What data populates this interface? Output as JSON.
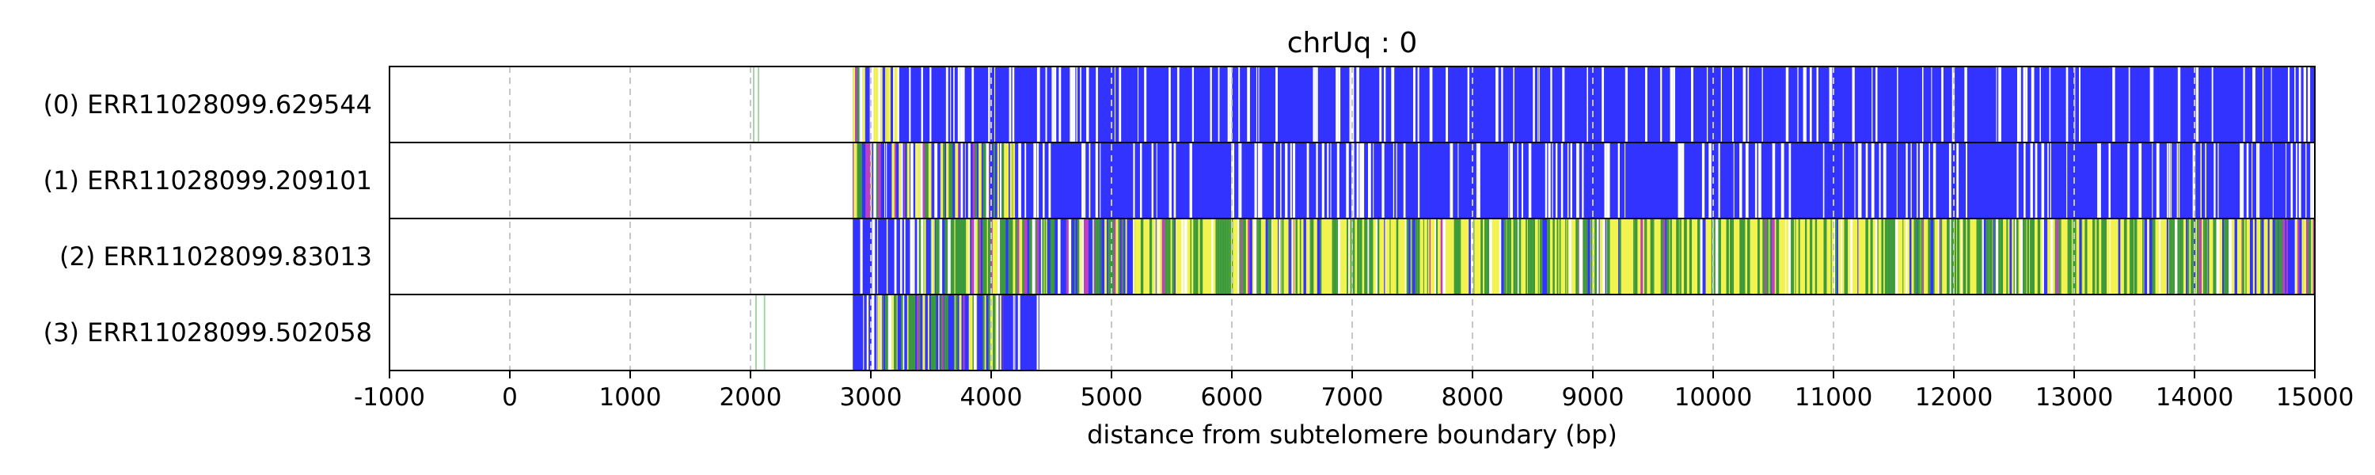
{
  "chart_data": {
    "type": "heatmap",
    "title": "chrUq : 0",
    "xlabel": "distance from subtelomere boundary (bp)",
    "ylabel": "",
    "xlim": [
      -1000,
      15000
    ],
    "x_ticks": [
      "-1000",
      "0",
      "1000",
      "2000",
      "3000",
      "4000",
      "5000",
      "6000",
      "7000",
      "8000",
      "9000",
      "10000",
      "11000",
      "12000",
      "13000",
      "14000",
      "15000"
    ],
    "grid": "vertical dashed",
    "colors": {
      "blue": "#3333ff",
      "yellow": "#f2f250",
      "green": "#3c9a3c",
      "magenta": "#c040c0",
      "grid": "#c8c8c8",
      "light_green": "#8fc98f"
    },
    "reads": [
      {
        "label": "(0) ERR11028099.629544",
        "start": 2850,
        "end": 15000,
        "segments": [
          {
            "start": 2850,
            "end": 3250,
            "pattern": "mixed"
          },
          {
            "start": 3250,
            "end": 15000,
            "pattern": "blue"
          }
        ]
      },
      {
        "label": "(1) ERR11028099.209101",
        "start": 2850,
        "end": 15000,
        "segments": [
          {
            "start": 2850,
            "end": 4200,
            "pattern": "mixed"
          },
          {
            "start": 4200,
            "end": 15000,
            "pattern": "blue"
          }
        ]
      },
      {
        "label": "(2) ERR11028099.83013",
        "start": 2850,
        "end": 15000,
        "segments": [
          {
            "start": 2850,
            "end": 3400,
            "pattern": "blue"
          },
          {
            "start": 3400,
            "end": 4700,
            "pattern": "green"
          },
          {
            "start": 4700,
            "end": 5200,
            "pattern": "mixed"
          },
          {
            "start": 5200,
            "end": 14500,
            "pattern": "yellow"
          },
          {
            "start": 14500,
            "end": 15000,
            "pattern": "mixed"
          }
        ]
      },
      {
        "label": "(3) ERR11028099.502058",
        "start": 2850,
        "end": 4400,
        "segments": [
          {
            "start": 2850,
            "end": 3050,
            "pattern": "blue"
          },
          {
            "start": 3050,
            "end": 4100,
            "pattern": "mixed"
          },
          {
            "start": 4100,
            "end": 4400,
            "pattern": "blue"
          }
        ]
      }
    ]
  }
}
